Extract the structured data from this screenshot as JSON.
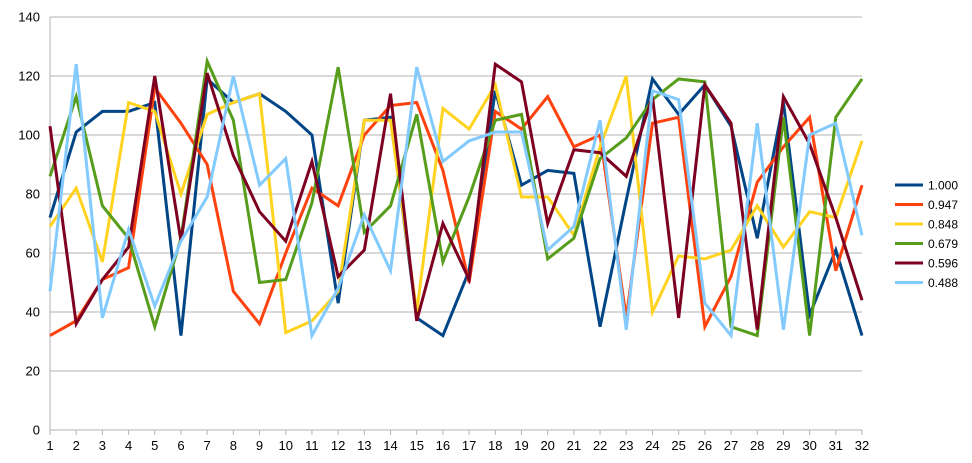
{
  "chart_data": {
    "type": "line",
    "title": "",
    "xlabel": "",
    "ylabel": "",
    "x": [
      1,
      2,
      3,
      4,
      5,
      6,
      7,
      8,
      9,
      10,
      11,
      12,
      13,
      14,
      15,
      16,
      17,
      18,
      19,
      20,
      21,
      22,
      23,
      24,
      25,
      26,
      27,
      28,
      29,
      30,
      31,
      32
    ],
    "ylim": [
      0,
      140
    ],
    "yticks": [
      0,
      20,
      40,
      60,
      80,
      100,
      120,
      140
    ],
    "grid": true,
    "legend_position": "right",
    "series": [
      {
        "name": "1.000",
        "color": "#004586",
        "values": [
          72,
          101,
          108,
          108,
          111,
          32,
          119,
          111,
          114,
          108,
          100,
          43,
          105,
          106,
          38,
          32,
          54,
          115,
          83,
          88,
          87,
          35,
          78,
          119,
          107,
          117,
          103,
          65,
          111,
          39,
          61,
          32
        ]
      },
      {
        "name": "0.947",
        "color": "#ff420e",
        "values": [
          32,
          37,
          51,
          55,
          116,
          104,
          90,
          47,
          36,
          60,
          82,
          76,
          100,
          110,
          111,
          88,
          50,
          108,
          102,
          113,
          96,
          100,
          38,
          104,
          106,
          35,
          52,
          84,
          96,
          106,
          54,
          83
        ]
      },
      {
        "name": "0.848",
        "color": "#ffd320",
        "values": [
          69,
          82,
          57,
          111,
          108,
          80,
          107,
          111,
          114,
          33,
          37,
          47,
          105,
          105,
          40,
          109,
          102,
          117,
          79,
          79,
          66,
          96,
          120,
          40,
          59,
          58,
          61,
          76,
          62,
          74,
          72,
          98
        ]
      },
      {
        "name": "0.679",
        "color": "#579d1c",
        "values": [
          86,
          113,
          76,
          65,
          35,
          65,
          125,
          105,
          50,
          51,
          77,
          123,
          67,
          76,
          107,
          57,
          79,
          105,
          107,
          58,
          65,
          92,
          99,
          112,
          119,
          118,
          35,
          32,
          106,
          32,
          106,
          119
        ]
      },
      {
        "name": "0.596",
        "color": "#7e0021",
        "values": [
          103,
          36,
          51,
          62,
          120,
          64,
          121,
          93,
          74,
          64,
          91,
          52,
          61,
          114,
          37,
          70,
          51,
          124,
          118,
          70,
          95,
          94,
          86,
          113,
          38,
          117,
          104,
          34,
          113,
          97,
          72,
          44
        ]
      },
      {
        "name": "0.488",
        "color": "#83caff",
        "values": [
          47,
          124,
          38,
          68,
          42,
          64,
          79,
          120,
          83,
          92,
          32,
          48,
          73,
          54,
          123,
          91,
          98,
          101,
          101,
          61,
          69,
          105,
          34,
          115,
          112,
          43,
          32,
          104,
          34,
          100,
          104,
          66
        ]
      }
    ]
  }
}
